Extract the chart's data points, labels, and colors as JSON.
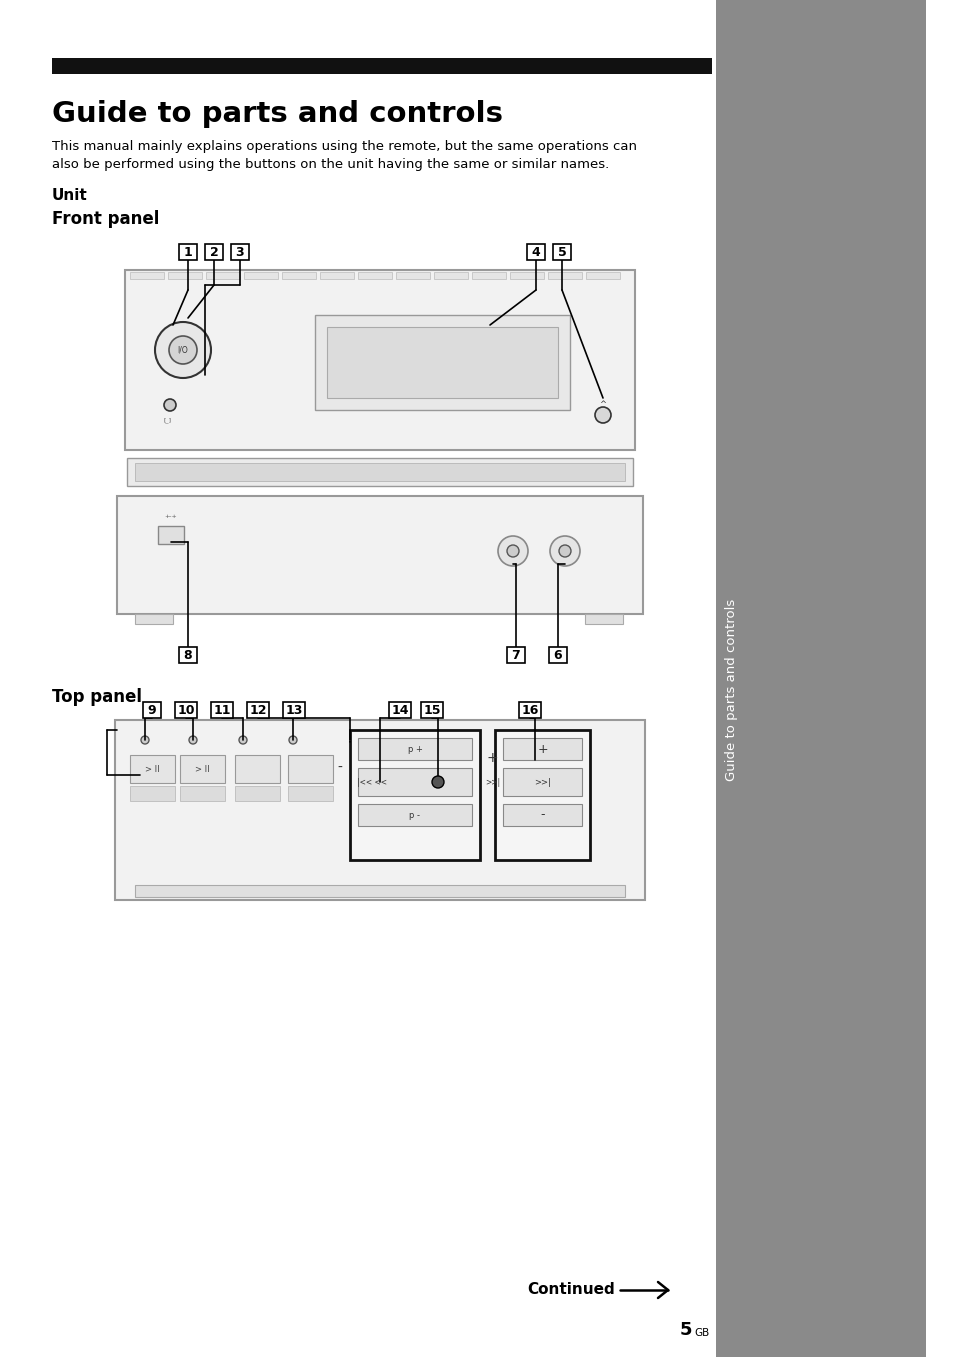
{
  "title": "Guide to parts and controls",
  "subtitle_line1": "This manual mainly explains operations using the remote, but the same operations can",
  "subtitle_line2": "also be performed using the buttons on the unit having the same or similar names.",
  "section1": "Unit",
  "section2": "Front panel",
  "section3": "Top panel",
  "sidebar_text": "Guide to parts and controls",
  "continued_text": "Continued",
  "page_num": "5",
  "page_suffix": "GB",
  "bg_color": "#ffffff",
  "sidebar_color": "#8a8a8a",
  "black": "#000000",
  "light_gray": "#d0d0d0",
  "mid_gray": "#999999",
  "dark_gray": "#555555",
  "header_bar_color": "#111111",
  "device_body_color": "#eeeeee",
  "device_edge_color": "#888888"
}
